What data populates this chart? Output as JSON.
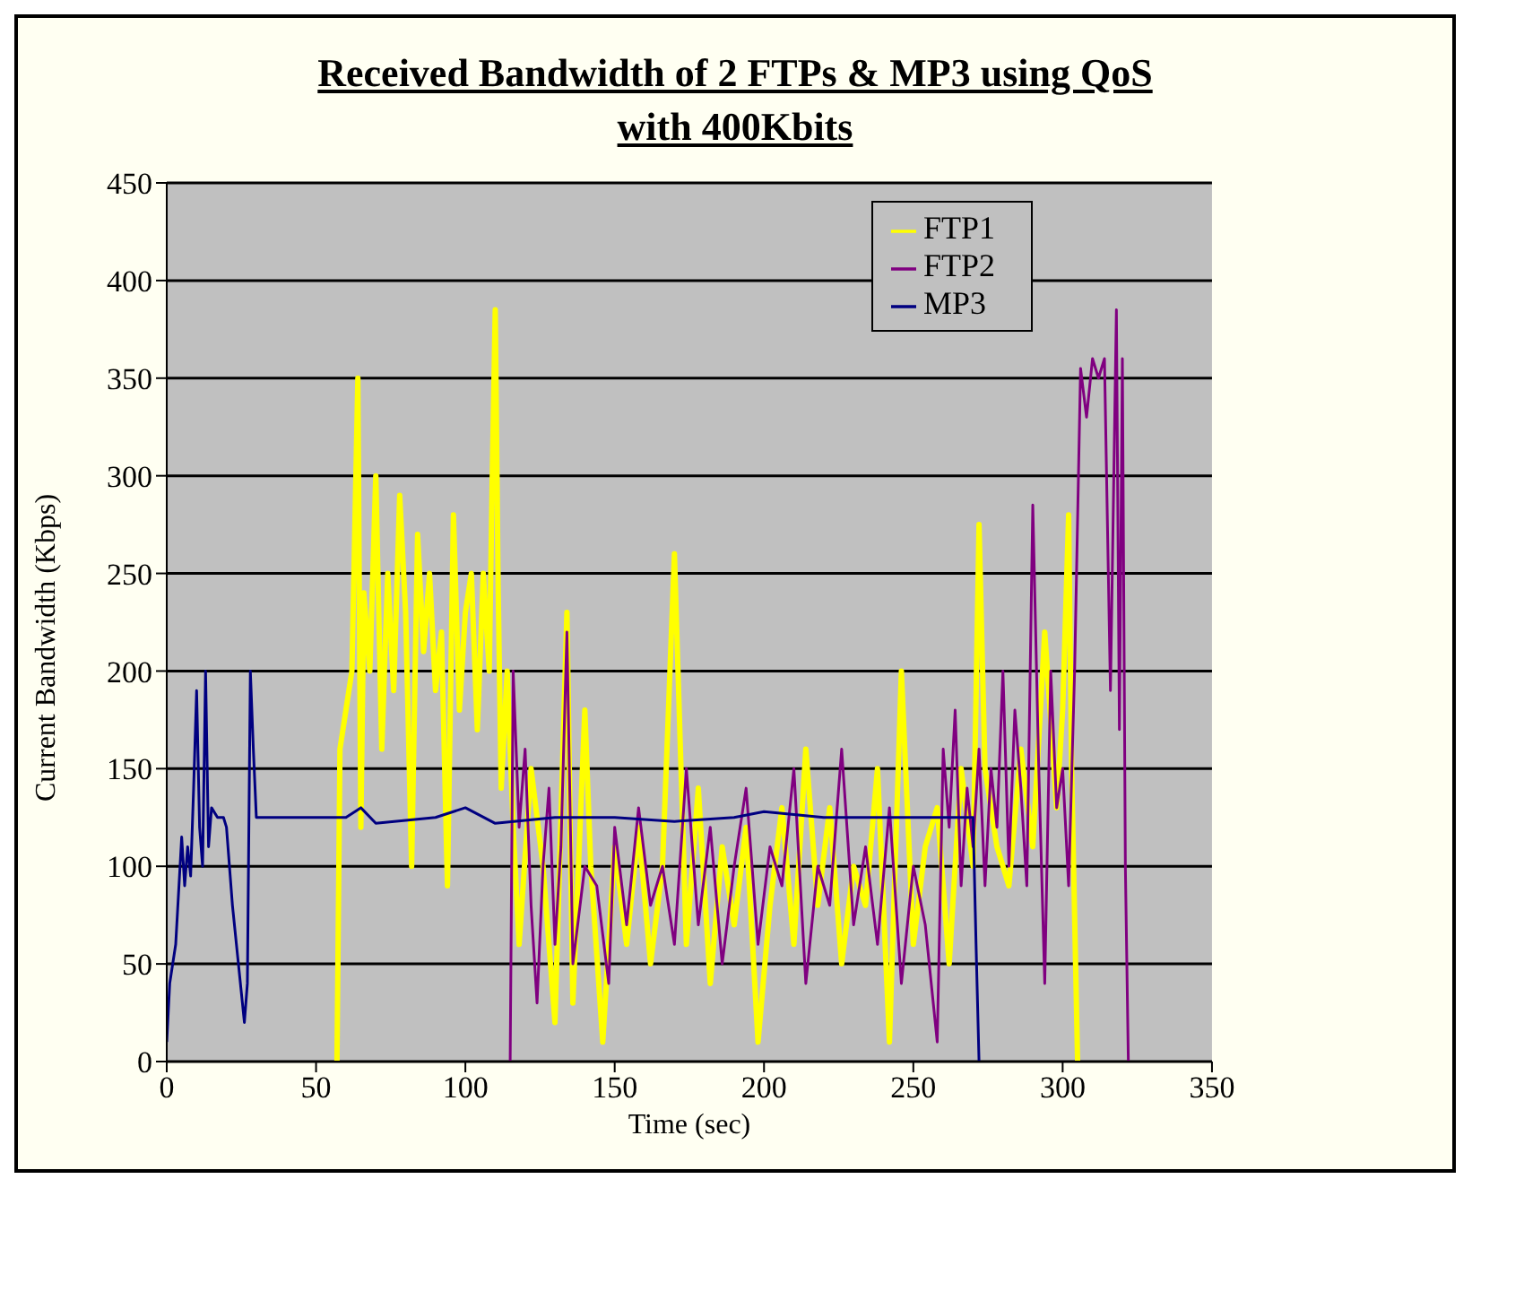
{
  "chart_data": {
    "type": "line",
    "title": "Received Bandwidth of 2 FTPs & MP3 using QoS with 400Kbits",
    "xlabel": "Time (sec)",
    "ylabel": "Current Bandwidth (Kbps)",
    "xlim": [
      0,
      350
    ],
    "xticks": [
      0,
      50,
      100,
      150,
      200,
      250,
      300,
      350
    ],
    "ylim": [
      0,
      450
    ],
    "yticks": [
      0,
      50,
      100,
      150,
      200,
      250,
      300,
      350,
      400,
      450
    ],
    "grid": "y",
    "legend": "top right",
    "marker": "none",
    "line_style": "solid",
    "series": [
      {
        "name": "FTP1",
        "color": "#ffff00",
        "x": [
          57,
          58,
          60,
          62,
          64,
          65,
          66,
          68,
          70,
          72,
          74,
          76,
          78,
          80,
          82,
          84,
          86,
          88,
          90,
          92,
          94,
          96,
          98,
          100,
          102,
          104,
          106,
          108,
          109,
          110,
          111,
          112,
          114,
          116,
          118,
          122,
          126,
          130,
          134,
          136,
          140,
          142,
          146,
          150,
          154,
          158,
          162,
          166,
          170,
          174,
          178,
          182,
          186,
          190,
          194,
          198,
          202,
          206,
          210,
          214,
          218,
          222,
          226,
          230,
          234,
          238,
          242,
          246,
          250,
          254,
          258,
          262,
          266,
          270,
          272,
          274,
          278,
          282,
          286,
          290,
          294,
          298,
          300,
          302,
          303,
          305
        ],
        "values": [
          0,
          160,
          180,
          200,
          350,
          120,
          240,
          200,
          300,
          160,
          250,
          190,
          290,
          230,
          100,
          270,
          210,
          250,
          190,
          220,
          90,
          280,
          180,
          230,
          250,
          170,
          250,
          200,
          300,
          385,
          240,
          140,
          200,
          120,
          60,
          150,
          100,
          20,
          230,
          30,
          180,
          100,
          10,
          110,
          60,
          120,
          50,
          100,
          260,
          60,
          140,
          40,
          110,
          70,
          120,
          10,
          80,
          130,
          60,
          160,
          80,
          130,
          50,
          100,
          80,
          150,
          10,
          200,
          60,
          110,
          130,
          50,
          150,
          100,
          275,
          150,
          110,
          90,
          160,
          110,
          220,
          130,
          180,
          280,
          150,
          0
        ]
      },
      {
        "name": "FTP2",
        "color": "#800080",
        "x": [
          115,
          116,
          118,
          120,
          122,
          124,
          126,
          128,
          130,
          132,
          134,
          136,
          140,
          144,
          148,
          150,
          154,
          158,
          162,
          166,
          170,
          174,
          178,
          182,
          186,
          190,
          194,
          198,
          202,
          206,
          210,
          214,
          218,
          222,
          226,
          230,
          234,
          238,
          242,
          246,
          250,
          254,
          258,
          260,
          262,
          264,
          266,
          268,
          270,
          272,
          274,
          276,
          278,
          280,
          282,
          284,
          286,
          288,
          290,
          292,
          294,
          296,
          298,
          300,
          302,
          304,
          306,
          308,
          310,
          312,
          314,
          316,
          318,
          319,
          320,
          321,
          322
        ],
        "values": [
          0,
          200,
          120,
          160,
          80,
          30,
          100,
          140,
          60,
          110,
          220,
          50,
          100,
          90,
          40,
          120,
          70,
          130,
          80,
          100,
          60,
          150,
          70,
          120,
          50,
          100,
          140,
          60,
          110,
          90,
          150,
          40,
          100,
          80,
          160,
          70,
          110,
          60,
          130,
          40,
          100,
          70,
          10,
          160,
          120,
          180,
          90,
          140,
          110,
          160,
          90,
          150,
          120,
          200,
          100,
          180,
          140,
          90,
          285,
          150,
          40,
          200,
          130,
          150,
          90,
          200,
          355,
          330,
          360,
          350,
          360,
          190,
          385,
          170,
          360,
          100,
          0
        ]
      },
      {
        "name": "MP3",
        "color": "#000080",
        "x": [
          0,
          1,
          3,
          5,
          6,
          7,
          8,
          9,
          10,
          11,
          12,
          13,
          14,
          15,
          17,
          19,
          20,
          22,
          24,
          26,
          27,
          28,
          29,
          30,
          50,
          60,
          65,
          70,
          90,
          100,
          110,
          130,
          150,
          170,
          190,
          200,
          220,
          240,
          260,
          270,
          271,
          272
        ],
        "values": [
          10,
          40,
          60,
          115,
          90,
          110,
          95,
          140,
          190,
          120,
          100,
          200,
          110,
          130,
          125,
          125,
          120,
          80,
          50,
          20,
          40,
          200,
          160,
          125,
          125,
          125,
          130,
          122,
          125,
          130,
          122,
          125,
          125,
          123,
          125,
          128,
          125,
          125,
          125,
          125,
          60,
          0
        ]
      }
    ]
  }
}
